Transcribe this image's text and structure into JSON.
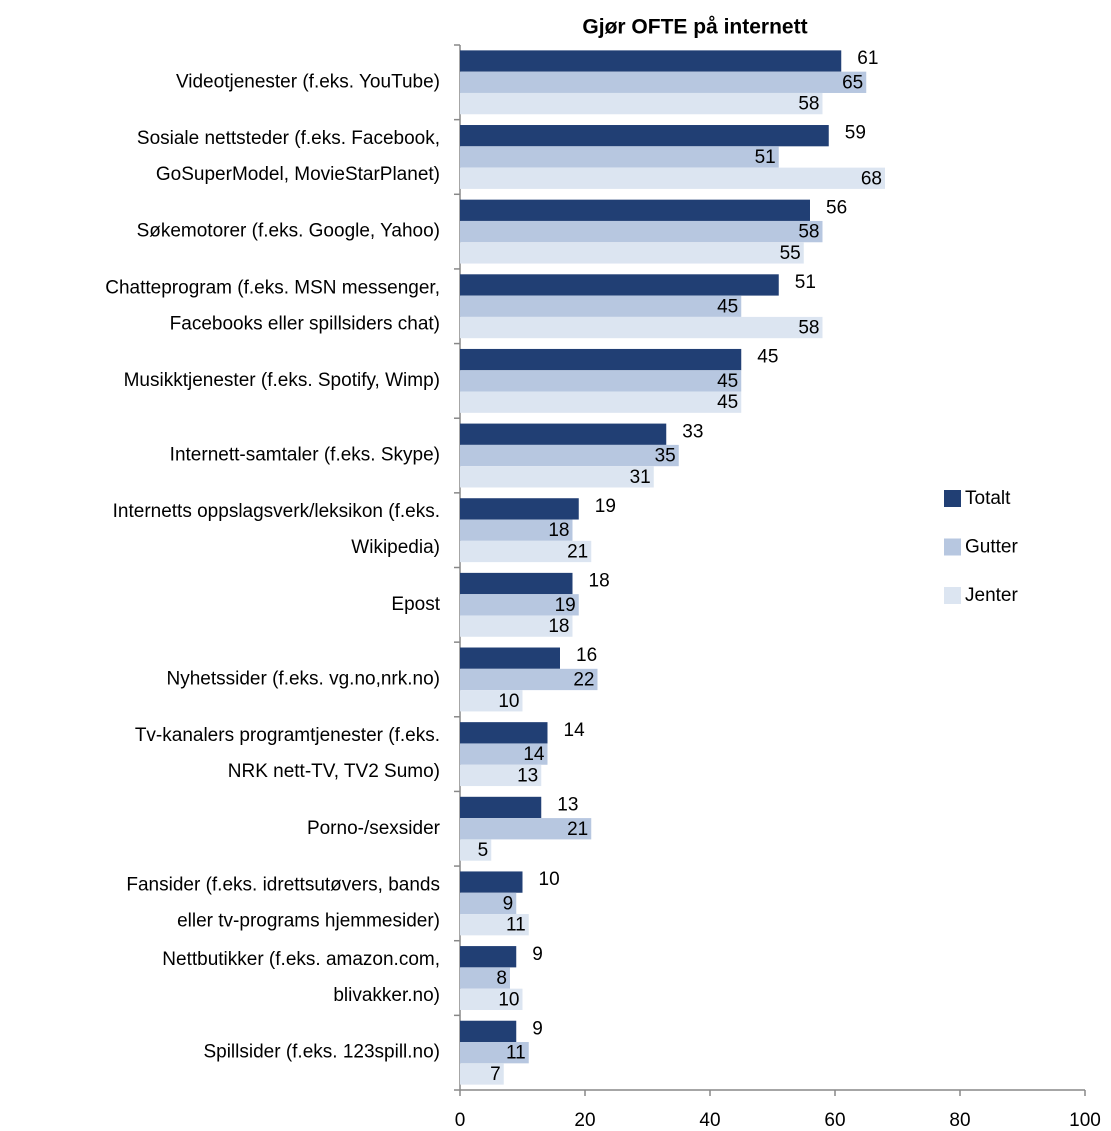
{
  "chart_data": {
    "type": "hbar",
    "title": "Gjør OFTE på internett",
    "categories": [
      "Videotjenester (f.eks. YouTube)",
      "Sosiale nettsteder (f.eks. Facebook,\nGoSuperModel, MovieStarPlanet)",
      "Søkemotorer (f.eks. Google, Yahoo)",
      "Chatteprogram (f.eks. MSN messenger,\nFacebooks eller spillsiders chat)",
      "Musikktjenester (f.eks. Spotify, Wimp)",
      "Internett-samtaler (f.eks. Skype)",
      "Internetts oppslagsverk/leksikon (f.eks.\nWikipedia)",
      "Epost",
      "Nyhetssider (f.eks. vg.no,nrk.no)",
      "Tv-kanalers programtjenester (f.eks.\nNRK nett-TV, TV2 Sumo)",
      "Porno-/sexsider",
      "Fansider (f.eks. idrettsutøvers, bands\neller tv-programs hjemmesider)",
      "Nettbutikker (f.eks. amazon.com,\nblivakker.no)",
      "Spillsider (f.eks. 123spill.no)"
    ],
    "series": [
      {
        "name": "Totalt",
        "color": "#213f74",
        "values": [
          61,
          59,
          56,
          51,
          45,
          33,
          19,
          18,
          16,
          14,
          13,
          10,
          9,
          9
        ]
      },
      {
        "name": "Gutter",
        "color": "#b7c7e0",
        "values": [
          65,
          51,
          58,
          45,
          45,
          35,
          18,
          19,
          22,
          14,
          21,
          9,
          8,
          11
        ]
      },
      {
        "name": "Jenter",
        "color": "#dce5f1",
        "values": [
          58,
          68,
          55,
          58,
          45,
          31,
          21,
          18,
          10,
          13,
          5,
          11,
          10,
          7
        ]
      }
    ],
    "xlim": [
      0,
      100
    ],
    "xticks": [
      0,
      20,
      40,
      60,
      80,
      100
    ],
    "legend": "right"
  }
}
